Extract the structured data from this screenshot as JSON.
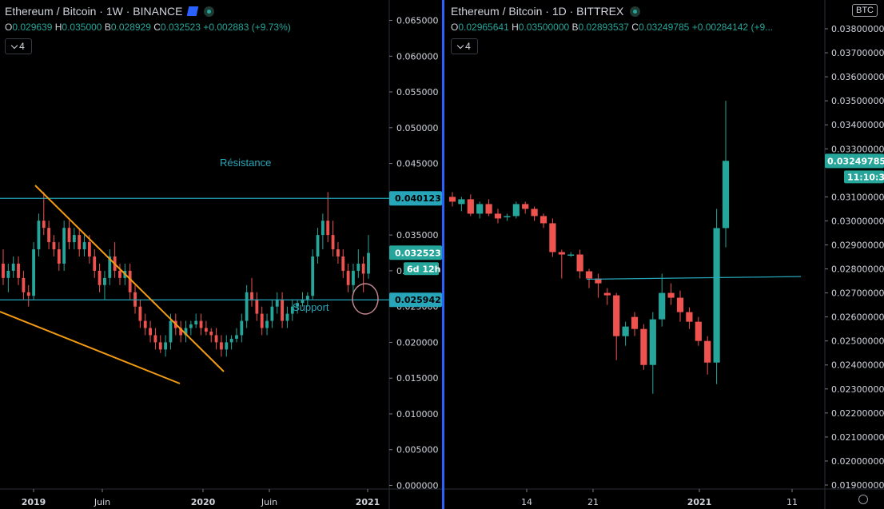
{
  "left_chart": {
    "title": "Ethereum / Bitcoin · 1W · BINANCE",
    "ohlc": {
      "o": "0.029639",
      "h": "0.035000",
      "b": "0.028929",
      "c": "0.032523",
      "chg": "+0.002883 (+9.73%)"
    },
    "indicator_count": "4",
    "price_ticks": [
      "0.065000",
      "0.060000",
      "0.055000",
      "0.050000",
      "0.045000",
      "0.040000",
      "0.035000",
      "0.030000",
      "0.025000",
      "0.020000",
      "0.015000",
      "0.010000",
      "0.005000",
      "0.000000"
    ],
    "x_ticks": [
      "2019",
      "Juin",
      "2020",
      "Juin",
      "2021"
    ],
    "badges": {
      "resistance": "0.040123",
      "last": "0.032523",
      "countdown": "6d 12h",
      "support": "0.025942"
    },
    "annotations": {
      "resistance": "Résistance",
      "support": "Support"
    }
  },
  "right_chart": {
    "title": "Ethereum / Bitcoin · 1D · BITTREX",
    "ohlc": {
      "o": "0.02965641",
      "h": "0.03500000",
      "b": "0.02893537",
      "c": "0.03249785",
      "chg": "+0.00284142 (+9..."
    },
    "indicator_count": "4",
    "currency": "BTC",
    "price_ticks": [
      "0.03800000",
      "0.03700000",
      "0.03600000",
      "0.03500000",
      "0.03400000",
      "0.03300000",
      "0.03100000",
      "0.03000000",
      "0.02900000",
      "0.02800000",
      "0.02700000",
      "0.02600000",
      "0.02500000",
      "0.02400000",
      "0.02300000",
      "0.02200000",
      "0.02100000",
      "0.02000000",
      "0.01900000"
    ],
    "x_ticks": [
      "14",
      "21",
      "2021",
      "11"
    ],
    "badges": {
      "last": "0.03249785",
      "countdown": "11:10:37"
    }
  },
  "chart_data": [
    {
      "type": "candlestick",
      "title": "Ethereum / Bitcoin · 1W · BINANCE",
      "ylim": [
        0,
        0.067
      ],
      "ohlc": [
        [
          0.031,
          0.033,
          0.028,
          0.029
        ],
        [
          0.029,
          0.031,
          0.027,
          0.03
        ],
        [
          0.03,
          0.032,
          0.029,
          0.031
        ],
        [
          0.031,
          0.032,
          0.028,
          0.029
        ],
        [
          0.029,
          0.03,
          0.026,
          0.027
        ],
        [
          0.027,
          0.028,
          0.025,
          0.0265
        ],
        [
          0.0265,
          0.034,
          0.026,
          0.033
        ],
        [
          0.033,
          0.038,
          0.032,
          0.037
        ],
        [
          0.037,
          0.041,
          0.035,
          0.036
        ],
        [
          0.036,
          0.037,
          0.033,
          0.034
        ],
        [
          0.034,
          0.035,
          0.032,
          0.033
        ],
        [
          0.033,
          0.034,
          0.03,
          0.031
        ],
        [
          0.031,
          0.037,
          0.03,
          0.036
        ],
        [
          0.036,
          0.037,
          0.033,
          0.034
        ],
        [
          0.034,
          0.036,
          0.033,
          0.035
        ],
        [
          0.035,
          0.036,
          0.032,
          0.033
        ],
        [
          0.033,
          0.035,
          0.032,
          0.034
        ],
        [
          0.034,
          0.035,
          0.031,
          0.032
        ],
        [
          0.032,
          0.033,
          0.029,
          0.03
        ],
        [
          0.03,
          0.031,
          0.027,
          0.028
        ],
        [
          0.028,
          0.03,
          0.026,
          0.029
        ],
        [
          0.029,
          0.033,
          0.028,
          0.032
        ],
        [
          0.032,
          0.034,
          0.029,
          0.03
        ],
        [
          0.03,
          0.031,
          0.028,
          0.029
        ],
        [
          0.029,
          0.031,
          0.028,
          0.03
        ],
        [
          0.03,
          0.031,
          0.026,
          0.027
        ],
        [
          0.027,
          0.028,
          0.024,
          0.025
        ],
        [
          0.025,
          0.026,
          0.022,
          0.023
        ],
        [
          0.023,
          0.024,
          0.021,
          0.022
        ],
        [
          0.022,
          0.023,
          0.02,
          0.021
        ],
        [
          0.021,
          0.022,
          0.019,
          0.02
        ],
        [
          0.02,
          0.021,
          0.0185,
          0.019
        ],
        [
          0.019,
          0.021,
          0.018,
          0.02
        ],
        [
          0.02,
          0.024,
          0.019,
          0.023
        ],
        [
          0.023,
          0.024,
          0.021,
          0.022
        ],
        [
          0.022,
          0.023,
          0.02,
          0.021
        ],
        [
          0.021,
          0.023,
          0.02,
          0.022
        ],
        [
          0.022,
          0.023,
          0.021,
          0.0225
        ],
        [
          0.0225,
          0.024,
          0.022,
          0.023
        ],
        [
          0.023,
          0.024,
          0.021,
          0.022
        ],
        [
          0.022,
          0.023,
          0.021,
          0.0215
        ],
        [
          0.0215,
          0.022,
          0.02,
          0.021
        ],
        [
          0.021,
          0.022,
          0.019,
          0.02
        ],
        [
          0.02,
          0.021,
          0.018,
          0.019
        ],
        [
          0.019,
          0.021,
          0.018,
          0.02
        ],
        [
          0.02,
          0.021,
          0.019,
          0.0205
        ],
        [
          0.0205,
          0.022,
          0.02,
          0.021
        ],
        [
          0.021,
          0.024,
          0.02,
          0.023
        ],
        [
          0.023,
          0.028,
          0.022,
          0.027
        ],
        [
          0.027,
          0.029,
          0.025,
          0.026
        ],
        [
          0.026,
          0.027,
          0.023,
          0.024
        ],
        [
          0.024,
          0.025,
          0.021,
          0.022
        ],
        [
          0.022,
          0.024,
          0.021,
          0.023
        ],
        [
          0.023,
          0.026,
          0.022,
          0.025
        ],
        [
          0.025,
          0.027,
          0.024,
          0.026
        ],
        [
          0.026,
          0.027,
          0.022,
          0.023
        ],
        [
          0.023,
          0.025,
          0.022,
          0.024
        ],
        [
          0.024,
          0.026,
          0.023,
          0.025
        ],
        [
          0.025,
          0.026,
          0.024,
          0.0255
        ],
        [
          0.0255,
          0.027,
          0.025,
          0.026
        ],
        [
          0.026,
          0.027,
          0.025,
          0.0265
        ],
        [
          0.0265,
          0.033,
          0.026,
          0.032
        ],
        [
          0.032,
          0.036,
          0.031,
          0.035
        ],
        [
          0.035,
          0.038,
          0.033,
          0.037
        ],
        [
          0.037,
          0.041,
          0.034,
          0.035
        ],
        [
          0.035,
          0.037,
          0.032,
          0.033
        ],
        [
          0.033,
          0.034,
          0.031,
          0.032
        ],
        [
          0.032,
          0.033,
          0.029,
          0.03
        ],
        [
          0.03,
          0.031,
          0.027,
          0.028
        ],
        [
          0.028,
          0.031,
          0.027,
          0.03
        ],
        [
          0.03,
          0.033,
          0.029,
          0.031
        ],
        [
          0.031,
          0.032,
          0.027,
          0.0296
        ],
        [
          0.0296,
          0.035,
          0.0289,
          0.0325
        ]
      ]
    },
    {
      "type": "candlestick",
      "title": "Ethereum / Bitcoin · 1D · BITTREX",
      "ylim": [
        0.0186,
        0.0388
      ],
      "ohlc": [
        [
          0.031,
          0.0312,
          0.0306,
          0.0308
        ],
        [
          0.0307,
          0.031,
          0.0304,
          0.0309
        ],
        [
          0.0309,
          0.0311,
          0.0302,
          0.0303
        ],
        [
          0.0303,
          0.0308,
          0.0301,
          0.0307
        ],
        [
          0.0307,
          0.0309,
          0.0302,
          0.0303
        ],
        [
          0.0303,
          0.0305,
          0.0299,
          0.0301
        ],
        [
          0.0302,
          0.0303,
          0.03,
          0.0302
        ],
        [
          0.0302,
          0.0308,
          0.0301,
          0.0307
        ],
        [
          0.0307,
          0.0308,
          0.0303,
          0.0305
        ],
        [
          0.0305,
          0.0306,
          0.03,
          0.0302
        ],
        [
          0.0302,
          0.0303,
          0.0297,
          0.0299
        ],
        [
          0.0299,
          0.0301,
          0.0285,
          0.0287
        ],
        [
          0.0287,
          0.0288,
          0.0276,
          0.0286
        ],
        [
          0.0286,
          0.0287,
          0.0285,
          0.0286
        ],
        [
          0.0286,
          0.0288,
          0.0276,
          0.0279
        ],
        [
          0.0279,
          0.028,
          0.0272,
          0.0276
        ],
        [
          0.0276,
          0.0278,
          0.0268,
          0.0274
        ],
        [
          0.027,
          0.0272,
          0.0265,
          0.0269
        ],
        [
          0.0269,
          0.027,
          0.0242,
          0.0252
        ],
        [
          0.0252,
          0.0258,
          0.0248,
          0.0256
        ],
        [
          0.026,
          0.0262,
          0.0252,
          0.0255
        ],
        [
          0.0255,
          0.0257,
          0.0238,
          0.024
        ],
        [
          0.024,
          0.0262,
          0.0228,
          0.0259
        ],
        [
          0.0259,
          0.0278,
          0.0256,
          0.027
        ],
        [
          0.027,
          0.0274,
          0.0265,
          0.0268
        ],
        [
          0.0268,
          0.0271,
          0.0258,
          0.0262
        ],
        [
          0.0262,
          0.0264,
          0.0255,
          0.0258
        ],
        [
          0.0258,
          0.026,
          0.0248,
          0.025
        ],
        [
          0.025,
          0.0252,
          0.0236,
          0.0241
        ],
        [
          0.0241,
          0.0305,
          0.0232,
          0.0297
        ],
        [
          0.0297,
          0.035,
          0.0289,
          0.0325
        ]
      ],
      "hlines": [
        {
          "value": 0.02765,
          "label": ""
        }
      ]
    }
  ]
}
